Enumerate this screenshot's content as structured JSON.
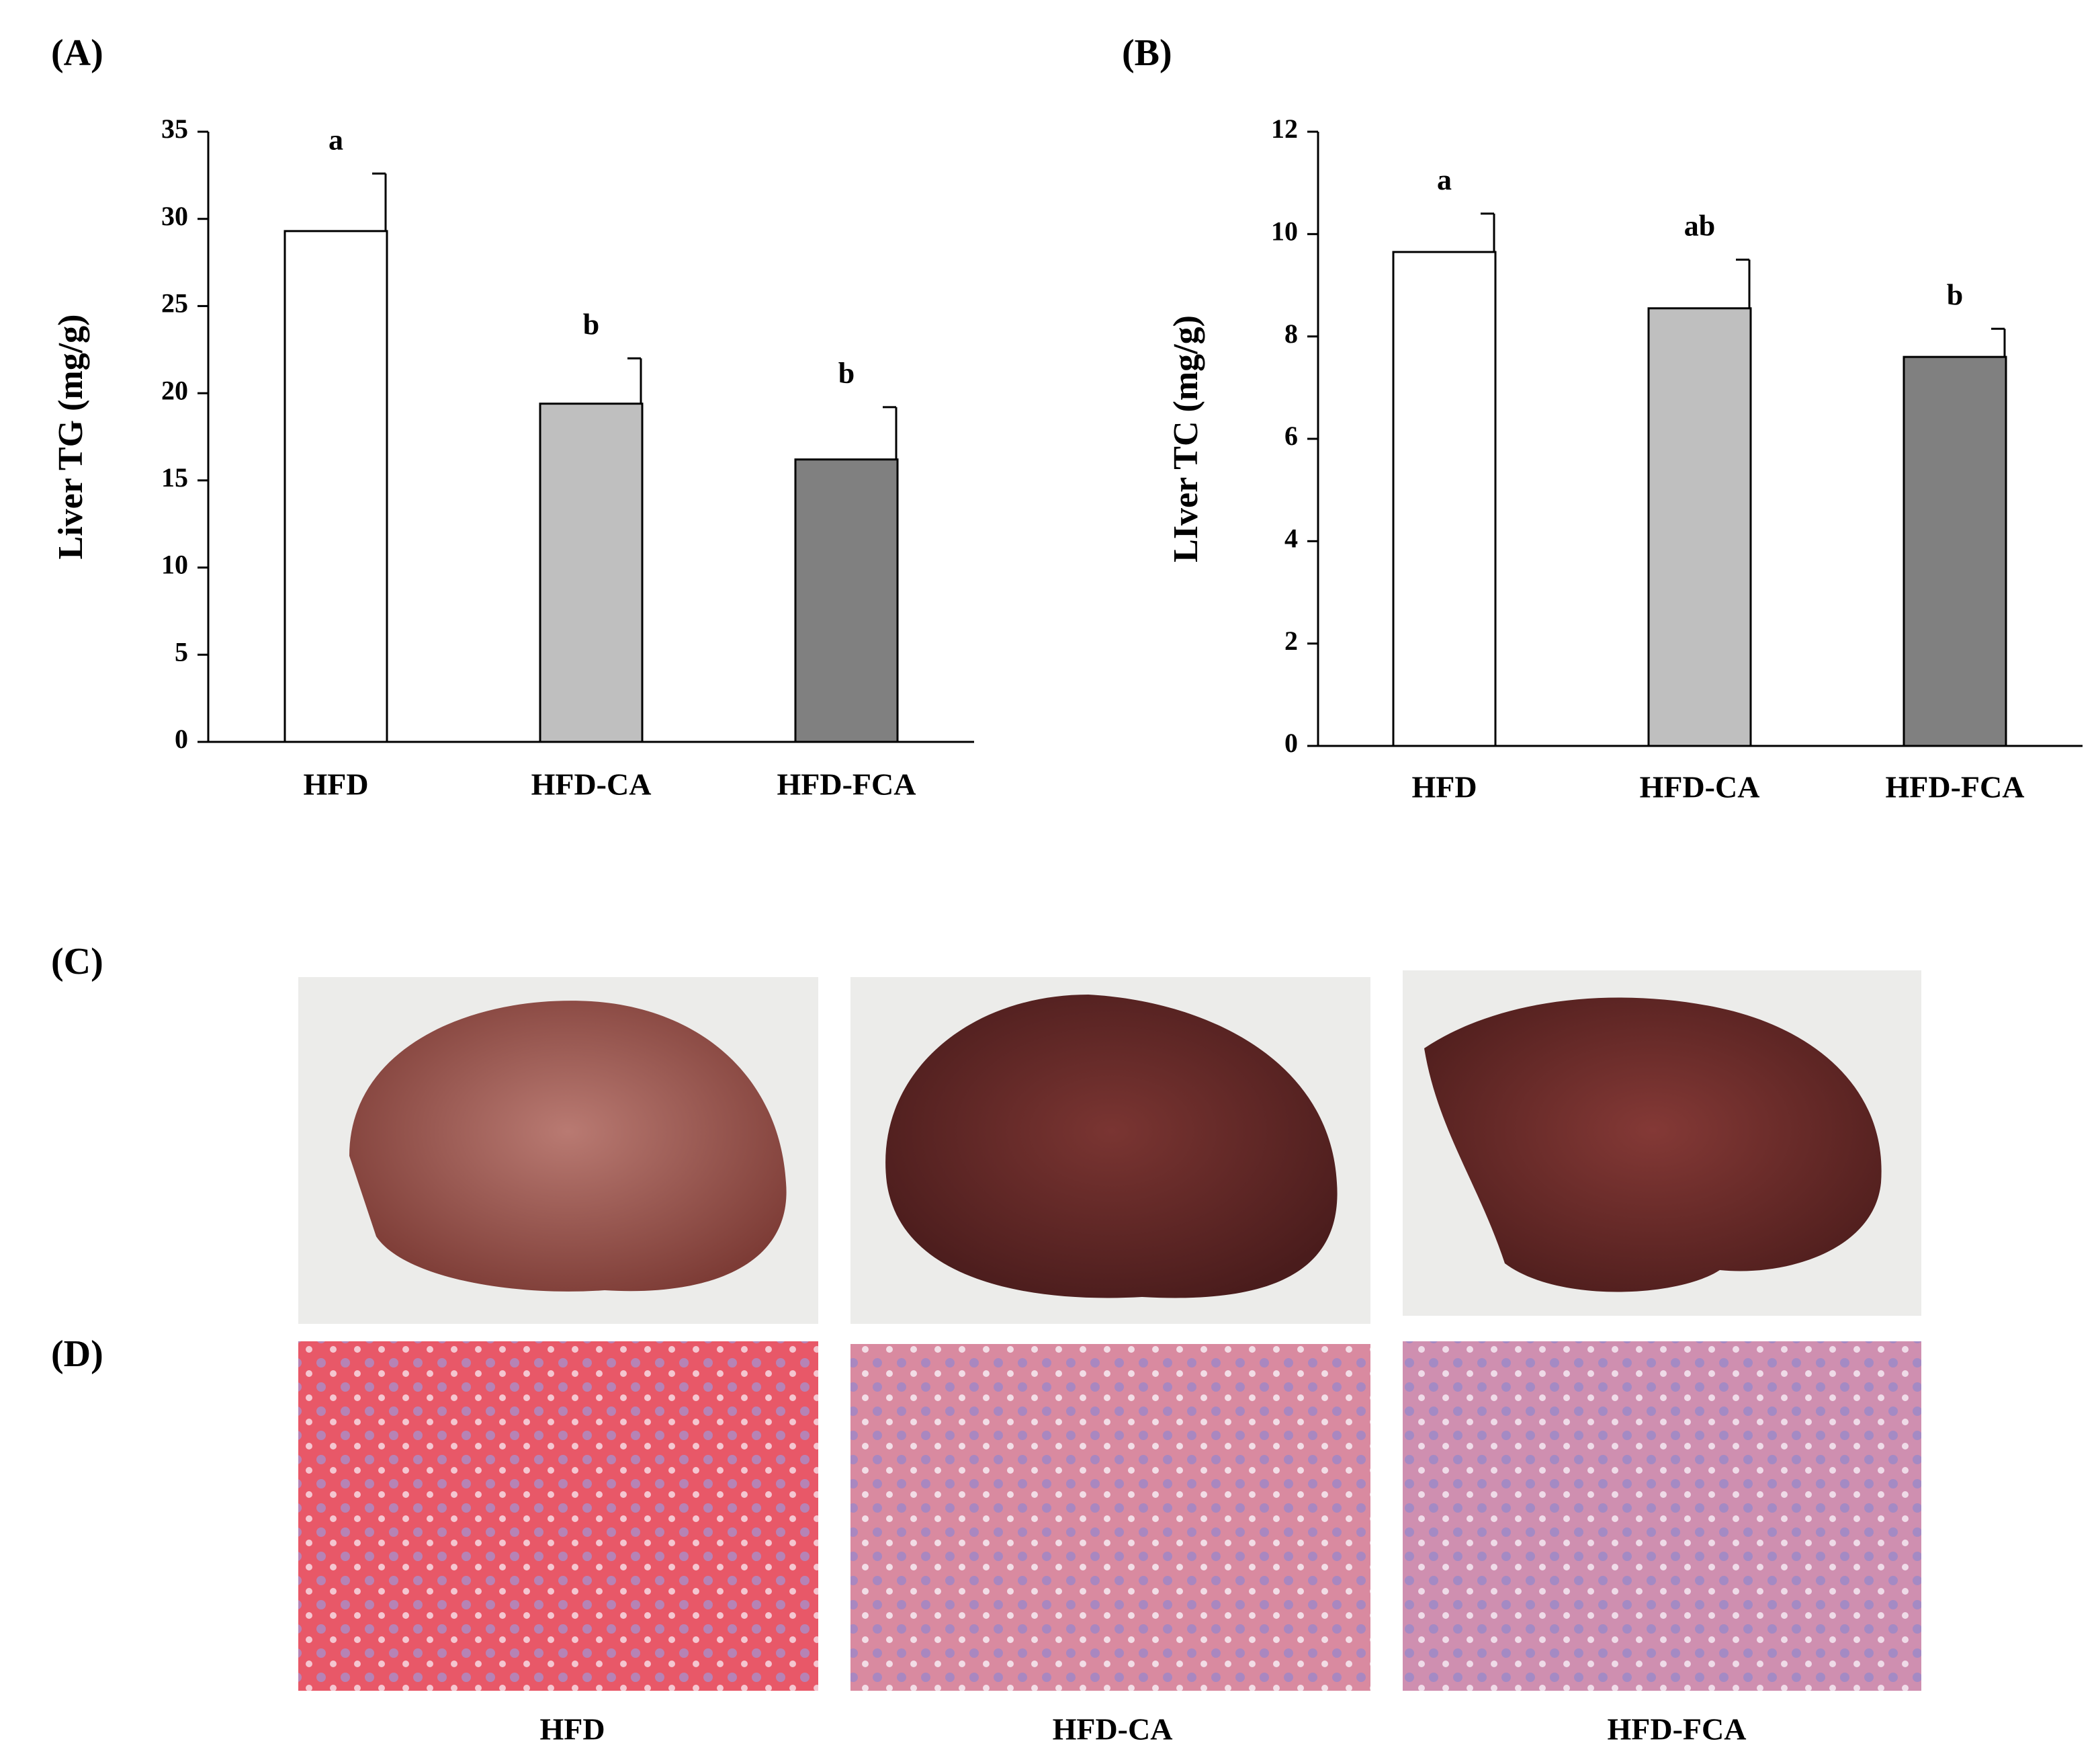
{
  "chart_data": [
    {
      "type": "bar",
      "panel": "(A)",
      "ylabel": "Liver TG (mg/g)",
      "categories": [
        "HFD",
        "HFD-CA",
        "HFD-FCA"
      ],
      "values": [
        29.3,
        19.4,
        16.2
      ],
      "errors": [
        3.3,
        2.6,
        3.0
      ],
      "annotations": [
        "a",
        "b",
        "b"
      ],
      "colors": [
        "#ffffff",
        "#bfbfbf",
        "#808080"
      ],
      "ylim": [
        0,
        35
      ],
      "yticks": [
        0,
        5,
        10,
        15,
        20,
        25,
        30,
        35
      ]
    },
    {
      "type": "bar",
      "panel": "(B)",
      "ylabel": "LIver TC (mg/g)",
      "categories": [
        "HFD",
        "HFD-CA",
        "HFD-FCA"
      ],
      "values": [
        9.65,
        8.55,
        7.6
      ],
      "errors": [
        0.75,
        0.95,
        0.55
      ],
      "annotations": [
        "a",
        "ab",
        "b"
      ],
      "colors": [
        "#ffffff",
        "#bfbfbf",
        "#808080"
      ],
      "ylim": [
        0,
        12
      ],
      "yticks": [
        0,
        2,
        4,
        6,
        8,
        10,
        12
      ]
    }
  ],
  "photo_panels": {
    "labels": [
      "(C)",
      "(D)"
    ],
    "groups": [
      "HFD",
      "HFD-CA",
      "HFD-FCA"
    ]
  }
}
